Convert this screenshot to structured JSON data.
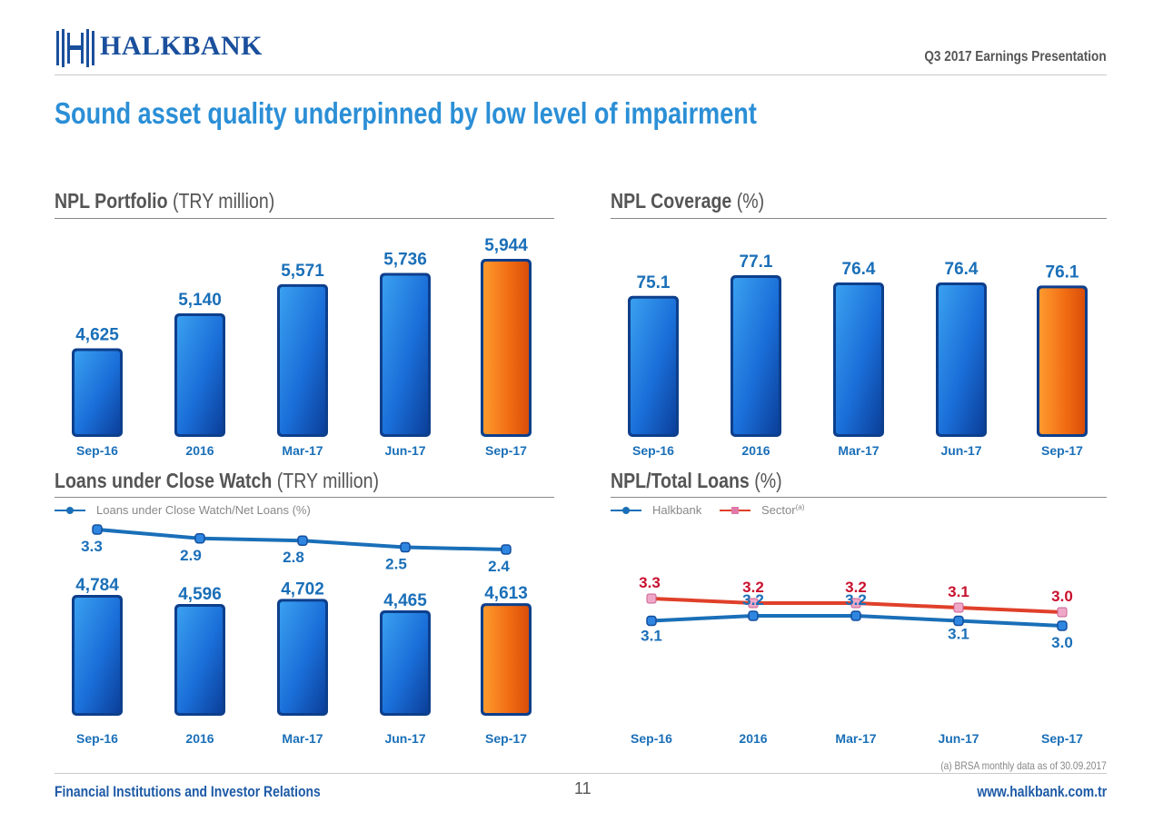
{
  "header": {
    "brand": "HALKBANK",
    "presentation_title": "Q3 2017 Earnings Presentation"
  },
  "page_title": "Sound asset quality underpinned by low level of impairment",
  "colors": {
    "title_blue": "#2b8fd6",
    "bar_blue": "#1a6ed8",
    "bar_orange": "#f06a12",
    "halkbank_line": "#1a6fb8",
    "sector_line": "#e0402a",
    "label_blue": "#1a6fb8",
    "label_red": "#c8102e"
  },
  "sections": {
    "npl_portfolio": {
      "title": "NPL Portfolio",
      "unit": "(TRY million)"
    },
    "npl_coverage": {
      "title": "NPL Coverage",
      "unit": "(%)"
    },
    "close_watch": {
      "title": "Loans under Close Watch",
      "unit": "(TRY million)"
    },
    "npl_total": {
      "title": "NPL/Total Loans",
      "unit": "(%)"
    }
  },
  "chart_data": [
    {
      "id": "npl_portfolio",
      "type": "bar",
      "title": "NPL Portfolio (TRY million)",
      "categories": [
        "Sep-16",
        "2016",
        "Mar-17",
        "Jun-17",
        "Sep-17"
      ],
      "values": [
        4625,
        5140,
        5571,
        5736,
        5944
      ],
      "labels": [
        "4,625",
        "5,140",
        "5,571",
        "5,736",
        "5,944"
      ],
      "highlight_index": 4
    },
    {
      "id": "npl_coverage",
      "type": "bar",
      "title": "NPL Coverage (%)",
      "categories": [
        "Sep-16",
        "2016",
        "Mar-17",
        "Jun-17",
        "Sep-17"
      ],
      "values": [
        75.1,
        77.1,
        76.4,
        76.4,
        76.1
      ],
      "labels": [
        "75.1",
        "77.1",
        "76.4",
        "76.4",
        "76.1"
      ],
      "highlight_index": 4
    },
    {
      "id": "close_watch",
      "type": "bar",
      "title": "Loans under Close Watch (TRY million)",
      "categories": [
        "Sep-16",
        "2016",
        "Mar-17",
        "Jun-17",
        "Sep-17"
      ],
      "values": [
        4784,
        4596,
        4702,
        4465,
        4613
      ],
      "labels": [
        "4,784",
        "4,596",
        "4,702",
        "4,465",
        "4,613"
      ],
      "highlight_index": 4,
      "line_series": {
        "name": "Loans under Close Watch/Net Loans (%)",
        "values": [
          3.3,
          2.9,
          2.8,
          2.5,
          2.4
        ],
        "labels": [
          "3.3",
          "2.9",
          "2.8",
          "2.5",
          "2.4"
        ]
      }
    },
    {
      "id": "npl_total",
      "type": "line",
      "title": "NPL/Total Loans (%)",
      "categories": [
        "Sep-16",
        "2016",
        "Mar-17",
        "Jun-17",
        "Sep-17"
      ],
      "series": [
        {
          "name": "Halkbank",
          "values": [
            3.1,
            3.2,
            3.2,
            3.1,
            3.0
          ],
          "labels": [
            "3.1",
            "3.2",
            "3.2",
            "3.1",
            "3.0"
          ]
        },
        {
          "name": "Sector",
          "superscript": "(a)",
          "values": [
            3.3,
            3.2,
            3.2,
            3.1,
            3.0
          ],
          "labels": [
            "3.3",
            "3.2",
            "3.2",
            "3.1",
            "3.0"
          ]
        }
      ]
    }
  ],
  "footnote": "(a) BRSA monthly data as of 30.09.2017",
  "footer": {
    "left": "Financial Institutions and Investor Relations",
    "page_number": "11",
    "website": "www.halkbank.com.tr"
  }
}
